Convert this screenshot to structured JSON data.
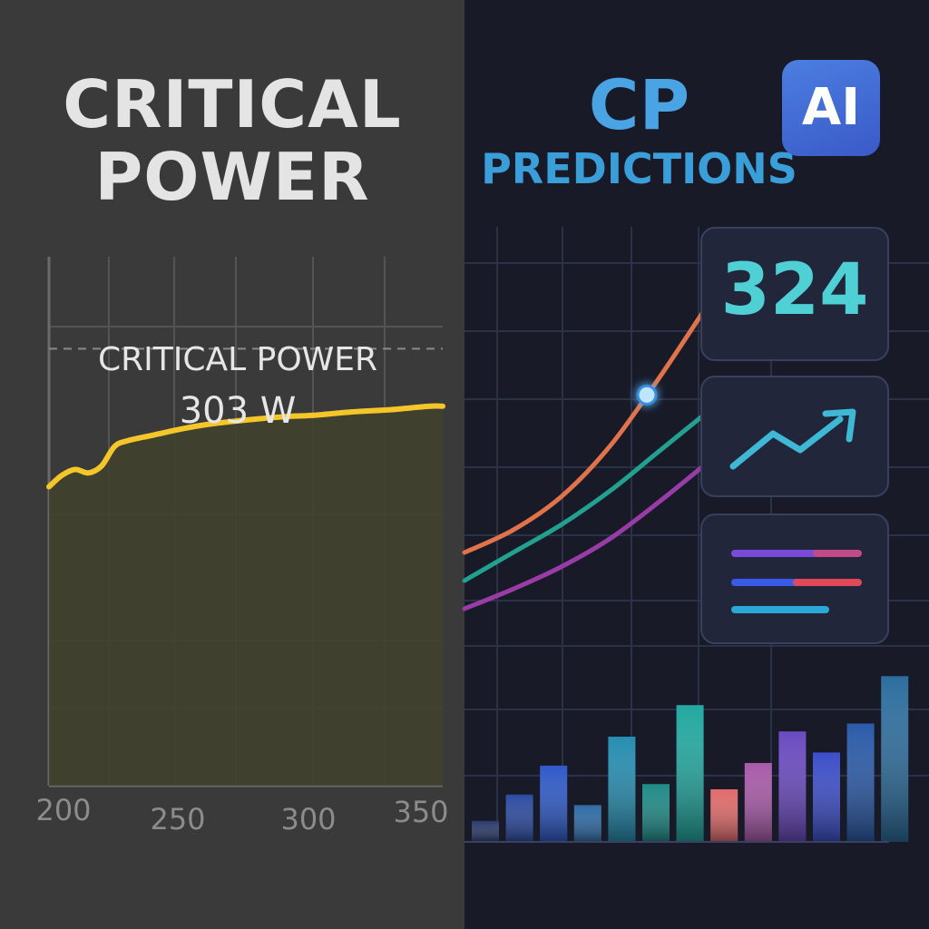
{
  "left_panel": {
    "title_line1": "CRITICAL",
    "title_line2": "POWER",
    "annotation_label": "CRITICAL POWER",
    "annotation_value": "303 W"
  },
  "right_panel": {
    "title_line1": "CP",
    "title_line2": "PREDICTIONS",
    "ai_badge": "AI",
    "prediction_value": "324",
    "trend_card_icon": "trend-up-arrow-icon",
    "list_card_icon": "list-lines-icon"
  },
  "colors": {
    "left_bg": "#3a3a3a",
    "right_bg": "#181a28",
    "power_curve": "#f5c62a",
    "accent_teal": "#4fd0d4",
    "curve_orange": "#e0734a",
    "curve_teal": "#22a090",
    "curve_purple": "#9a3ca8"
  },
  "chart_data": [
    {
      "type": "line",
      "x_tick_labels": [
        "200",
        "250",
        "300",
        "350"
      ],
      "xlim": [
        200,
        350
      ],
      "ylim": [
        0,
        460
      ],
      "series": [
        {
          "x": [
            200,
            205,
            210,
            215,
            220,
            225,
            230,
            240,
            250,
            260,
            275,
            290,
            300,
            315,
            330,
            345,
            350
          ],
          "y": [
            260,
            270,
            275,
            272,
            278,
            295,
            300,
            305,
            310,
            314,
            318,
            321,
            322,
            325,
            327,
            330,
            330
          ]
        }
      ],
      "reference_line": {
        "y": 380,
        "label": "CRITICAL POWER",
        "value_label": "303 W"
      },
      "grid": true
    },
    {
      "type": "line",
      "series": [
        {
          "color": "#e0734a",
          "x": [
            0,
            20,
            40,
            60,
            80,
            100
          ],
          "y": [
            10,
            18,
            30,
            48,
            72,
            98
          ]
        },
        {
          "color": "#22a090",
          "x": [
            0,
            20,
            40,
            60,
            80,
            100
          ],
          "y": [
            0,
            10,
            20,
            32,
            46,
            60
          ]
        },
        {
          "color": "#9a3ca8",
          "x": [
            0,
            20,
            40,
            60,
            80,
            100
          ],
          "y": [
            -10,
            -3,
            5,
            15,
            28,
            42
          ]
        }
      ],
      "highlight_point": {
        "x": 75,
        "series": 0
      },
      "grid": true
    },
    {
      "type": "bar",
      "values": [
        8,
        18,
        29,
        14,
        40,
        22,
        52,
        20,
        30,
        42,
        34,
        45,
        63
      ],
      "colors": [
        "#2a3a6a",
        "#2c4aa0",
        "#2e5ac8",
        "#2f6aa6",
        "#268db0",
        "#1f8a86",
        "#23a8a0",
        "#e06a6a",
        "#a85aa8",
        "#6a4ac0",
        "#3b4ec8",
        "#2a5aa8",
        "#2d6e9e"
      ],
      "gradient_bottom": "#1a2148",
      "grid": true
    }
  ]
}
